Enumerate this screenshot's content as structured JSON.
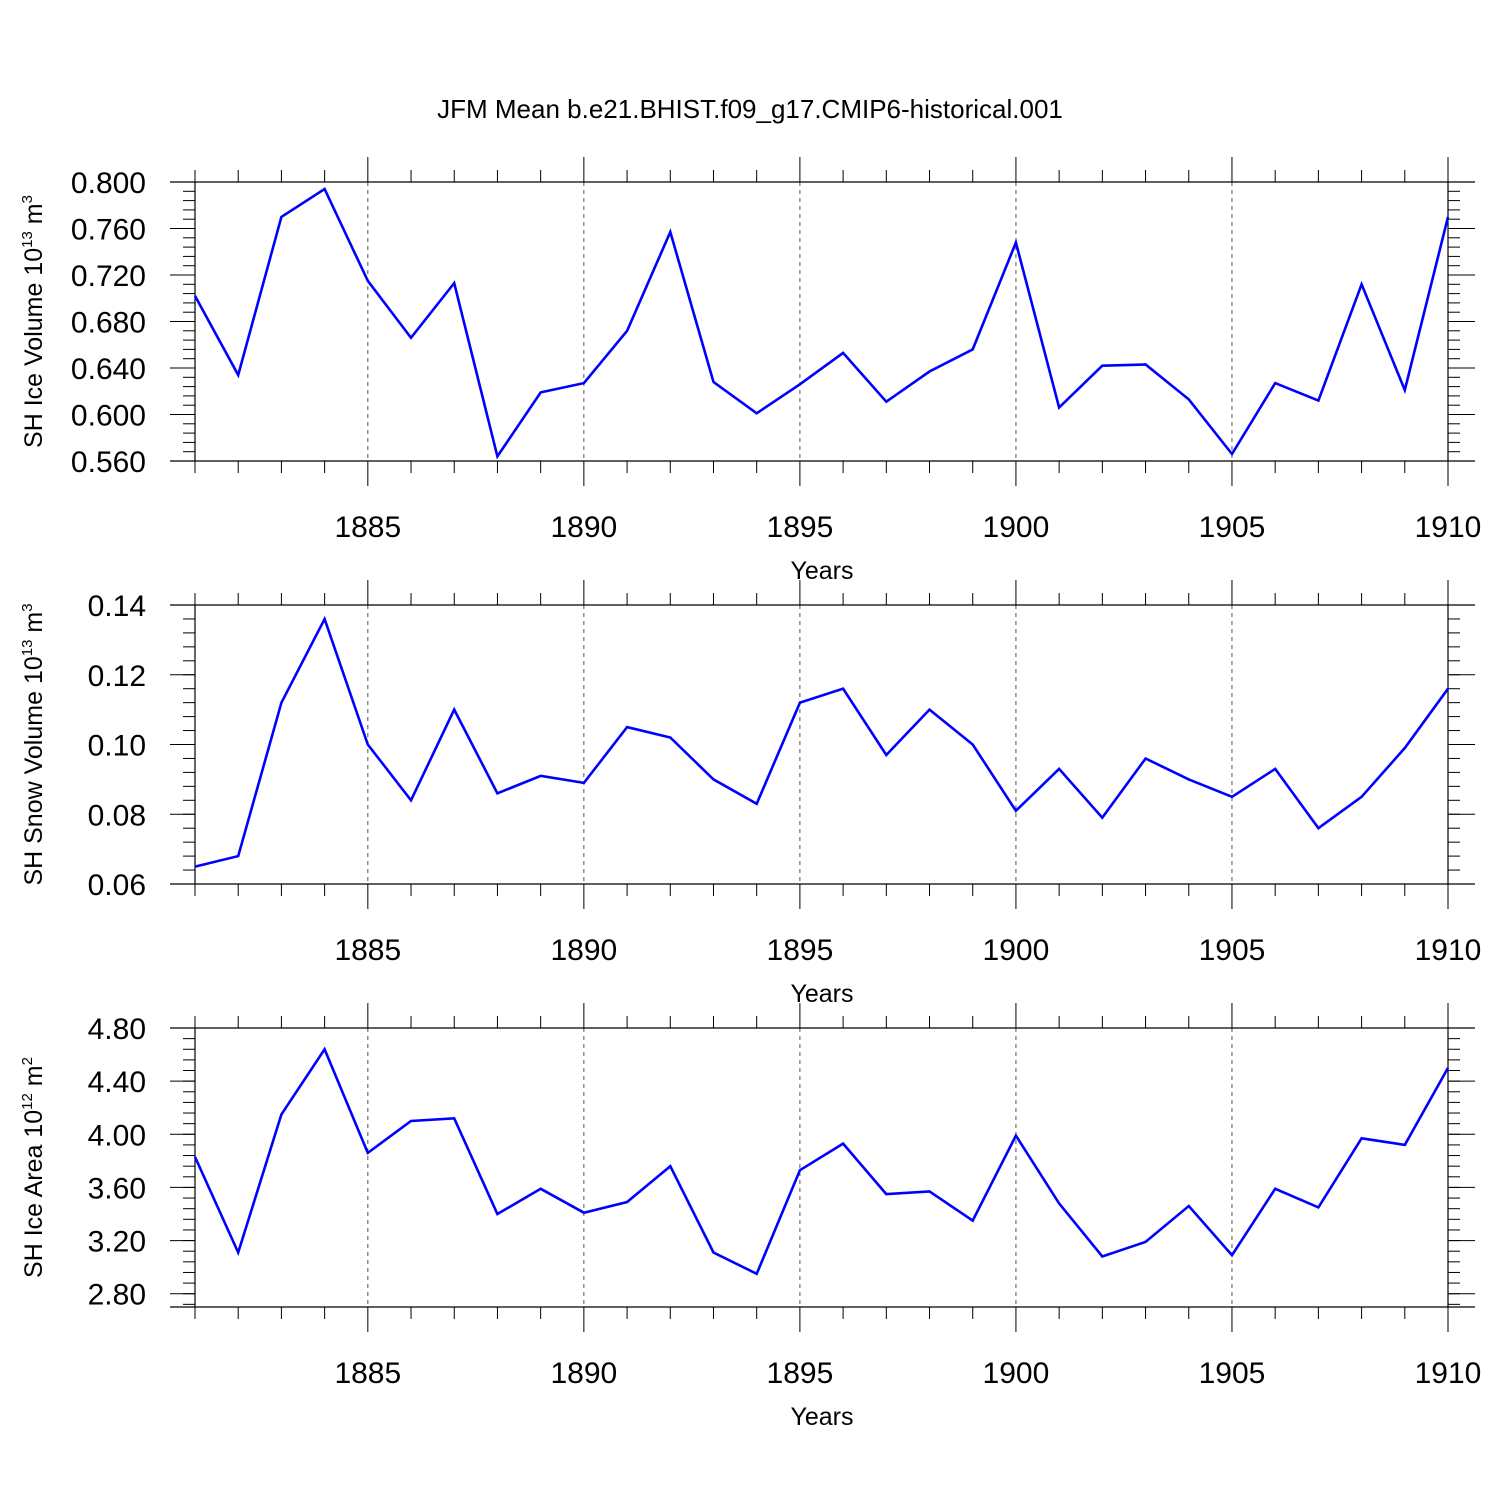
{
  "title": "JFM Mean b.e21.BHIST.f09_g17.CMIP6-historical.001",
  "line_color": "#0000ff",
  "grid_color": "#555555",
  "chart_data": [
    {
      "type": "line",
      "series_name": "SH Ice Volume",
      "ylabel": {
        "text": "SH Ice Volume 10",
        "exp": "13",
        "unit": " m",
        "unit_exp": "3"
      },
      "xlabel": "Years",
      "xlim": [
        1881,
        1910
      ],
      "ylim": [
        0.56,
        0.8
      ],
      "yticks": [
        0.56,
        0.6,
        0.64,
        0.68,
        0.72,
        0.76,
        0.8
      ],
      "ytick_labels": [
        "0.560",
        "0.600",
        "0.640",
        "0.680",
        "0.720",
        "0.760",
        "0.800"
      ],
      "xticks": [
        1885,
        1890,
        1895,
        1900,
        1905,
        1910
      ],
      "xtick_labels": [
        "1885",
        "1890",
        "1895",
        "1900",
        "1905",
        "1910"
      ],
      "x": [
        1881,
        1882,
        1883,
        1884,
        1885,
        1886,
        1887,
        1888,
        1889,
        1890,
        1891,
        1892,
        1893,
        1894,
        1895,
        1896,
        1897,
        1898,
        1899,
        1900,
        1901,
        1902,
        1903,
        1904,
        1905,
        1906,
        1907,
        1908,
        1909,
        1910
      ],
      "values": [
        0.702,
        0.634,
        0.77,
        0.794,
        0.715,
        0.666,
        0.713,
        0.564,
        0.619,
        0.627,
        0.672,
        0.757,
        0.628,
        0.601,
        0.626,
        0.653,
        0.611,
        0.637,
        0.656,
        0.748,
        0.606,
        0.642,
        0.643,
        0.613,
        0.566,
        0.627,
        0.612,
        0.712,
        0.621,
        0.77
      ]
    },
    {
      "type": "line",
      "series_name": "SH Snow Volume",
      "ylabel": {
        "text": "SH Snow Volume 10",
        "exp": "13",
        "unit": " m",
        "unit_exp": "3"
      },
      "xlabel": "Years",
      "xlim": [
        1881,
        1910
      ],
      "ylim": [
        0.06,
        0.14
      ],
      "yticks": [
        0.06,
        0.08,
        0.1,
        0.12,
        0.14
      ],
      "ytick_labels": [
        "0.06",
        "0.08",
        "0.10",
        "0.12",
        "0.14"
      ],
      "xticks": [
        1885,
        1890,
        1895,
        1900,
        1905,
        1910
      ],
      "xtick_labels": [
        "1885",
        "1890",
        "1895",
        "1900",
        "1905",
        "1910"
      ],
      "x": [
        1881,
        1882,
        1883,
        1884,
        1885,
        1886,
        1887,
        1888,
        1889,
        1890,
        1891,
        1892,
        1893,
        1894,
        1895,
        1896,
        1897,
        1898,
        1899,
        1900,
        1901,
        1902,
        1903,
        1904,
        1905,
        1906,
        1907,
        1908,
        1909,
        1910
      ],
      "values": [
        0.065,
        0.068,
        0.112,
        0.136,
        0.1,
        0.084,
        0.11,
        0.086,
        0.091,
        0.089,
        0.105,
        0.102,
        0.09,
        0.083,
        0.112,
        0.116,
        0.097,
        0.11,
        0.1,
        0.081,
        0.093,
        0.079,
        0.096,
        0.09,
        0.085,
        0.093,
        0.076,
        0.085,
        0.099,
        0.116
      ]
    },
    {
      "type": "line",
      "series_name": "SH Ice Area",
      "ylabel": {
        "text": "SH Ice Area 10",
        "exp": "12",
        "unit": " m",
        "unit_exp": "2"
      },
      "xlabel": "Years",
      "xlim": [
        1881,
        1910
      ],
      "ylim": [
        2.7,
        4.8
      ],
      "yticks": [
        2.8,
        3.2,
        3.6,
        4.0,
        4.4,
        4.8
      ],
      "ytick_labels": [
        "2.80",
        "3.20",
        "3.60",
        "4.00",
        "4.40",
        "4.80"
      ],
      "xticks": [
        1885,
        1890,
        1895,
        1900,
        1905,
        1910
      ],
      "xtick_labels": [
        "1885",
        "1890",
        "1895",
        "1900",
        "1905",
        "1910"
      ],
      "x": [
        1881,
        1882,
        1883,
        1884,
        1885,
        1886,
        1887,
        1888,
        1889,
        1890,
        1891,
        1892,
        1893,
        1894,
        1895,
        1896,
        1897,
        1898,
        1899,
        1900,
        1901,
        1902,
        1903,
        1904,
        1905,
        1906,
        1907,
        1908,
        1909,
        1910
      ],
      "values": [
        3.83,
        3.11,
        4.15,
        4.64,
        3.86,
        4.1,
        4.12,
        3.4,
        3.59,
        3.41,
        3.49,
        3.76,
        3.11,
        2.95,
        3.73,
        3.93,
        3.55,
        3.57,
        3.35,
        3.99,
        3.48,
        3.08,
        3.19,
        3.46,
        3.09,
        3.59,
        3.45,
        3.97,
        3.92,
        4.5
      ]
    }
  ]
}
